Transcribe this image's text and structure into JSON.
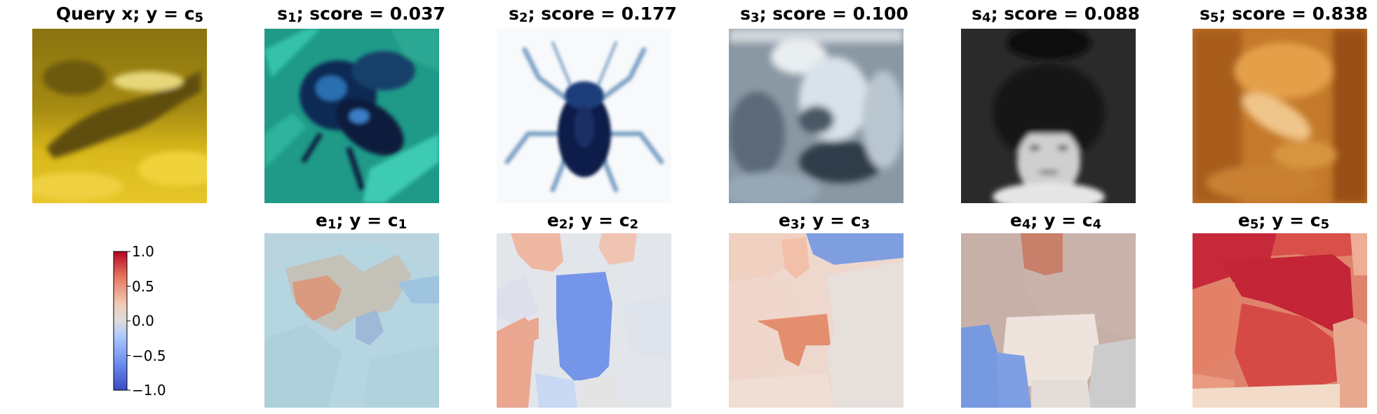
{
  "query": {
    "label": "Query x",
    "sep": "; y = c",
    "class_sub": "5"
  },
  "samples": [
    {
      "sym": "s",
      "sub": "1",
      "score_text": "; score = 0.037"
    },
    {
      "sym": "s",
      "sub": "2",
      "score_text": "; score = 0.177"
    },
    {
      "sym": "s",
      "sub": "3",
      "score_text": "; score = 0.100"
    },
    {
      "sym": "s",
      "sub": "4",
      "score_text": "; score = 0.088"
    },
    {
      "sym": "s",
      "sub": "5",
      "score_text": "; score = 0.838"
    }
  ],
  "explanations": [
    {
      "sym": "e",
      "sub": "1",
      "sep": "; y = c",
      "class_sub": "1"
    },
    {
      "sym": "e",
      "sub": "2",
      "sep": "; y = c",
      "class_sub": "2"
    },
    {
      "sym": "e",
      "sub": "3",
      "sep": "; y = c",
      "class_sub": "3"
    },
    {
      "sym": "e",
      "sub": "4",
      "sep": "; y = c",
      "class_sub": "4"
    },
    {
      "sym": "e",
      "sub": "5",
      "sep": "; y = c",
      "class_sub": "5"
    }
  ],
  "colorbar": {
    "ticks": [
      "1.0",
      "0.5",
      "0.0",
      "−0.5",
      "−1.0"
    ],
    "max": 1.0,
    "min": -1.0,
    "colormap": [
      "#b40426",
      "#e7745b",
      "#f2cbb7",
      "#dddddd",
      "#aac7fd",
      "#6788ee",
      "#3b4cc0"
    ]
  }
}
